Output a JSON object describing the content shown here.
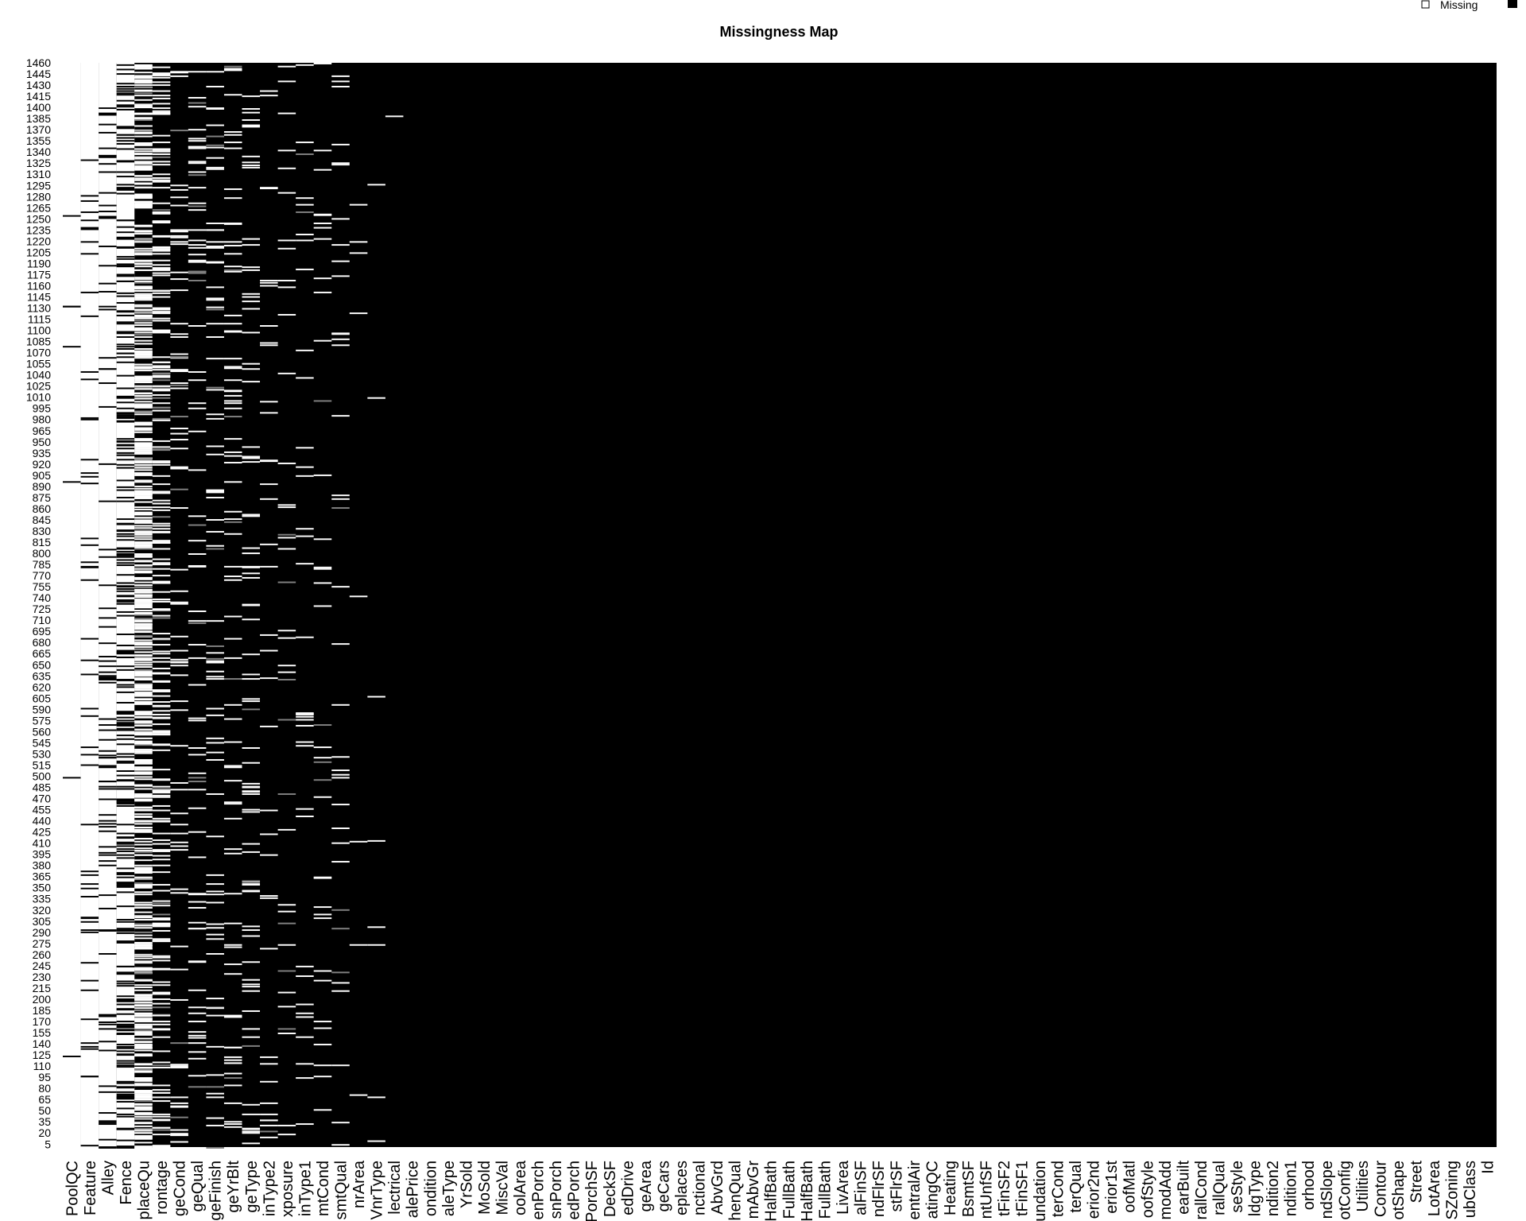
{
  "chart_data": {
    "type": "heatmap",
    "title": "Missingness Map",
    "legend": {
      "placement": "top-right",
      "entries": [
        {
          "label": "Missing",
          "color": "#ffffff"
        },
        {
          "label": "",
          "color": "#000000"
        }
      ]
    },
    "colors": {
      "missing": "#ffffff",
      "observed": "#000000",
      "partial": "#808080"
    },
    "ylim": [
      1,
      1460
    ],
    "y_ticks": [
      1460,
      1445,
      1430,
      1415,
      1400,
      1385,
      1370,
      1355,
      1340,
      1325,
      1310,
      1295,
      1280,
      1265,
      1250,
      1235,
      1220,
      1205,
      1190,
      1175,
      1160,
      1145,
      1130,
      1115,
      1100,
      1085,
      1070,
      1055,
      1040,
      1025,
      1010,
      995,
      980,
      965,
      950,
      935,
      920,
      905,
      890,
      875,
      860,
      845,
      830,
      815,
      800,
      785,
      770,
      755,
      740,
      725,
      710,
      695,
      680,
      665,
      650,
      635,
      620,
      605,
      590,
      575,
      560,
      545,
      530,
      515,
      500,
      485,
      470,
      455,
      440,
      425,
      410,
      395,
      380,
      365,
      350,
      335,
      320,
      305,
      290,
      275,
      260,
      245,
      230,
      215,
      200,
      185,
      170,
      155,
      140,
      125,
      110,
      95,
      80,
      65,
      50,
      35,
      20,
      5
    ],
    "variables": [
      "PoolQC",
      "Feature",
      "Alley",
      "Fence",
      "placeQu",
      "rontage",
      "geCond",
      "geQual",
      "geFinish",
      "geYrBlt",
      "geType",
      "inType2",
      "xposure",
      "inType1",
      "mtCond",
      "smtQual",
      "nrArea",
      "VnrType",
      "lectrical",
      "alePrice",
      "ondition",
      "aleType",
      "YrSold",
      "MoSold",
      "MiscVal",
      "oolArea",
      "enPorch",
      "snPorch",
      "edPorch",
      "PorchSF",
      "DeckSF",
      "edDrive",
      "geArea",
      "geCars",
      "eplaces",
      "nctional",
      "AbvGrd",
      "henQual",
      "mAbvGr",
      "HalfBath",
      "FullBath",
      "HalfBath",
      "FullBath",
      "LivArea",
      "alFinSF",
      "ndFlrSF",
      "stFlrSF",
      "entralAir",
      "atingQC",
      "Heating",
      "BsmtSF",
      "ntUnfSF",
      "tFinSF2",
      "tFinSF1",
      "undation",
      "terCond",
      "terQual",
      "erior2nd",
      "erior1st",
      "oofMatl",
      "oofStyle",
      "modAdd",
      "earBuilt",
      "rallCond",
      "rallQual",
      "seStyle",
      "ldgType",
      "ndition2",
      "ndition1",
      "orhood",
      "ndSlope",
      "otConfig",
      "Utilities",
      "Contour",
      "otShape",
      "Street",
      "LotArea",
      "SZoning",
      "ubClass",
      "Id"
    ],
    "missing_counts": [
      1453,
      1406,
      1369,
      1179,
      690,
      259,
      81,
      81,
      81,
      81,
      81,
      38,
      38,
      37,
      37,
      37,
      8,
      8,
      1,
      0,
      0,
      0,
      0,
      0,
      0,
      0,
      0,
      0,
      0,
      0,
      0,
      0,
      0,
      0,
      0,
      0,
      0,
      0,
      0,
      0,
      0,
      0,
      0,
      0,
      0,
      0,
      0,
      0,
      0,
      0,
      0,
      0,
      0,
      0,
      0,
      0,
      0,
      0,
      0,
      0,
      0,
      0,
      0,
      0,
      0,
      0,
      0,
      0,
      0,
      0,
      0,
      0,
      0,
      0,
      0,
      0,
      0,
      0,
      0,
      0
    ]
  }
}
